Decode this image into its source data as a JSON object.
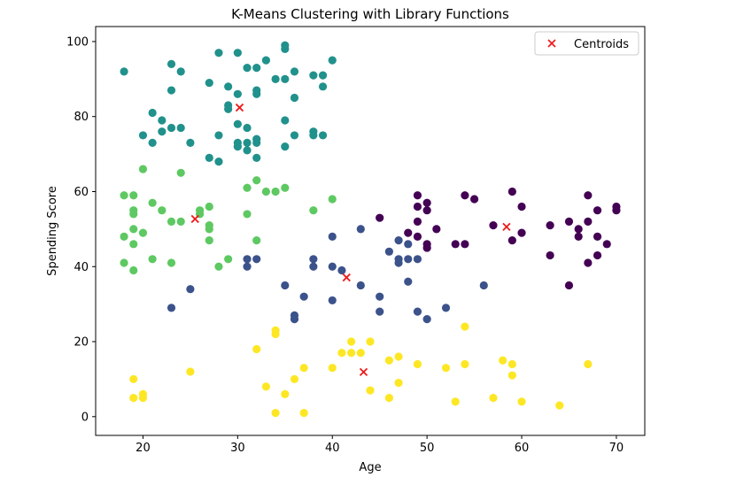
{
  "chart_data": {
    "type": "scatter",
    "title": "K-Means Clustering with Library Functions",
    "xlabel": "Age",
    "ylabel": "Spending Score",
    "xlim": [
      15,
      73
    ],
    "ylim": [
      -5,
      104
    ],
    "xticks": [
      20,
      30,
      40,
      50,
      60,
      70
    ],
    "yticks": [
      0,
      20,
      40,
      60,
      80,
      100
    ],
    "grid": false,
    "legend": {
      "position": "top-right",
      "entries": [
        "Centroids"
      ]
    },
    "series": [
      {
        "cluster": "teal",
        "color": "#21918c",
        "points": [
          [
            18,
            92
          ],
          [
            20,
            75
          ],
          [
            21,
            81
          ],
          [
            21,
            73
          ],
          [
            22,
            79
          ],
          [
            22,
            76
          ],
          [
            23,
            94
          ],
          [
            23,
            87
          ],
          [
            23,
            77
          ],
          [
            24,
            92
          ],
          [
            24,
            77
          ],
          [
            25,
            73
          ],
          [
            27,
            89
          ],
          [
            27,
            69
          ],
          [
            28,
            97
          ],
          [
            28,
            75
          ],
          [
            28,
            68
          ],
          [
            29,
            88
          ],
          [
            29,
            83
          ],
          [
            29,
            82
          ],
          [
            30,
            97
          ],
          [
            30,
            86
          ],
          [
            30,
            78
          ],
          [
            30,
            73
          ],
          [
            30,
            72
          ],
          [
            31,
            93
          ],
          [
            31,
            77
          ],
          [
            31,
            73
          ],
          [
            31,
            71
          ],
          [
            32,
            93
          ],
          [
            32,
            87
          ],
          [
            32,
            86
          ],
          [
            32,
            74
          ],
          [
            32,
            73
          ],
          [
            32,
            69
          ],
          [
            33,
            95
          ],
          [
            34,
            90
          ],
          [
            35,
            99
          ],
          [
            35,
            98
          ],
          [
            35,
            90
          ],
          [
            35,
            79
          ],
          [
            35,
            72
          ],
          [
            36,
            92
          ],
          [
            36,
            85
          ],
          [
            36,
            75
          ],
          [
            38,
            91
          ],
          [
            38,
            76
          ],
          [
            38,
            75
          ],
          [
            39,
            91
          ],
          [
            39,
            88
          ],
          [
            39,
            75
          ],
          [
            40,
            95
          ]
        ]
      },
      {
        "cluster": "green",
        "color": "#5ec962",
        "points": [
          [
            18,
            59
          ],
          [
            18,
            48
          ],
          [
            18,
            41
          ],
          [
            19,
            59
          ],
          [
            19,
            55
          ],
          [
            19,
            54
          ],
          [
            19,
            50
          ],
          [
            19,
            46
          ],
          [
            19,
            39
          ],
          [
            20,
            66
          ],
          [
            20,
            49
          ],
          [
            21,
            57
          ],
          [
            21,
            42
          ],
          [
            22,
            55
          ],
          [
            23,
            52
          ],
          [
            23,
            41
          ],
          [
            24,
            65
          ],
          [
            24,
            52
          ],
          [
            26,
            55
          ],
          [
            26,
            54
          ],
          [
            27,
            56
          ],
          [
            27,
            51
          ],
          [
            27,
            50
          ],
          [
            27,
            47
          ],
          [
            28,
            40
          ],
          [
            29,
            42
          ],
          [
            31,
            61
          ],
          [
            31,
            54
          ],
          [
            32,
            63
          ],
          [
            32,
            47
          ],
          [
            33,
            60
          ],
          [
            34,
            60
          ],
          [
            35,
            61
          ],
          [
            38,
            55
          ],
          [
            40,
            58
          ]
        ]
      },
      {
        "cluster": "purple",
        "color": "#440154",
        "points": [
          [
            45,
            53
          ],
          [
            48,
            49
          ],
          [
            49,
            59
          ],
          [
            49,
            56
          ],
          [
            49,
            52
          ],
          [
            49,
            48
          ],
          [
            50,
            57
          ],
          [
            50,
            55
          ],
          [
            50,
            46
          ],
          [
            50,
            45
          ],
          [
            51,
            50
          ],
          [
            53,
            46
          ],
          [
            54,
            59
          ],
          [
            54,
            46
          ],
          [
            55,
            58
          ],
          [
            57,
            51
          ],
          [
            59,
            60
          ],
          [
            59,
            47
          ],
          [
            60,
            56
          ],
          [
            60,
            49
          ],
          [
            63,
            51
          ],
          [
            63,
            43
          ],
          [
            65,
            52
          ],
          [
            65,
            35
          ],
          [
            66,
            50
          ],
          [
            66,
            48
          ],
          [
            67,
            59
          ],
          [
            67,
            52
          ],
          [
            67,
            41
          ],
          [
            68,
            55
          ],
          [
            68,
            48
          ],
          [
            68,
            43
          ],
          [
            69,
            46
          ],
          [
            70,
            56
          ],
          [
            70,
            55
          ]
        ]
      },
      {
        "cluster": "blue",
        "color": "#3b528b",
        "points": [
          [
            23,
            29
          ],
          [
            25,
            34
          ],
          [
            31,
            42
          ],
          [
            31,
            40
          ],
          [
            32,
            42
          ],
          [
            35,
            35
          ],
          [
            36,
            27
          ],
          [
            36,
            26
          ],
          [
            37,
            32
          ],
          [
            38,
            42
          ],
          [
            38,
            40
          ],
          [
            40,
            48
          ],
          [
            40,
            40
          ],
          [
            40,
            31
          ],
          [
            41,
            39
          ],
          [
            43,
            50
          ],
          [
            43,
            35
          ],
          [
            45,
            32
          ],
          [
            45,
            28
          ],
          [
            46,
            44
          ],
          [
            47,
            47
          ],
          [
            47,
            42
          ],
          [
            47,
            41
          ],
          [
            48,
            46
          ],
          [
            48,
            42
          ],
          [
            48,
            36
          ],
          [
            49,
            42
          ],
          [
            49,
            28
          ],
          [
            50,
            26
          ],
          [
            52,
            29
          ],
          [
            56,
            35
          ]
        ]
      },
      {
        "cluster": "yellow",
        "color": "#fde725",
        "points": [
          [
            19,
            10
          ],
          [
            19,
            5
          ],
          [
            20,
            6
          ],
          [
            20,
            5
          ],
          [
            25,
            12
          ],
          [
            32,
            18
          ],
          [
            33,
            8
          ],
          [
            34,
            23
          ],
          [
            34,
            22
          ],
          [
            34,
            1
          ],
          [
            35,
            6
          ],
          [
            36,
            10
          ],
          [
            37,
            13
          ],
          [
            37,
            1
          ],
          [
            40,
            13
          ],
          [
            41,
            17
          ],
          [
            42,
            20
          ],
          [
            42,
            17
          ],
          [
            43,
            17
          ],
          [
            44,
            20
          ],
          [
            44,
            7
          ],
          [
            46,
            15
          ],
          [
            46,
            5
          ],
          [
            47,
            16
          ],
          [
            47,
            9
          ],
          [
            49,
            14
          ],
          [
            52,
            13
          ],
          [
            53,
            4
          ],
          [
            54,
            24
          ],
          [
            54,
            14
          ],
          [
            57,
            5
          ],
          [
            58,
            15
          ],
          [
            59,
            14
          ],
          [
            59,
            11
          ],
          [
            60,
            4
          ],
          [
            64,
            3
          ],
          [
            67,
            14
          ]
        ]
      }
    ],
    "centroids": {
      "name": "Centroids",
      "color": "#ee1c1c",
      "points": [
        [
          25.5,
          52.7
        ],
        [
          30.2,
          82.4
        ],
        [
          41.5,
          37.1
        ],
        [
          43.3,
          11.9
        ],
        [
          58.4,
          50.6
        ]
      ]
    }
  }
}
